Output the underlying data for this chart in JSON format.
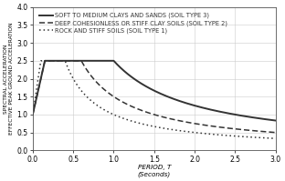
{
  "title": "",
  "xlabel": "PERIOD, T\n(Seconds)",
  "ylabel_line1": "SPECTRAL ACCELERATION",
  "ylabel_line2": "EFFECTIVE PEAK GROUND ACCELERATION",
  "xlim": [
    0.0,
    3.0
  ],
  "ylim": [
    0.0,
    4.0
  ],
  "xticks": [
    0.0,
    0.5,
    1.0,
    1.5,
    2.0,
    2.5,
    3.0
  ],
  "yticks": [
    0.0,
    0.5,
    1.0,
    1.5,
    2.0,
    2.5,
    3.0,
    3.5,
    4.0
  ],
  "legend": [
    {
      "label": "SOFT TO MEDIUM CLAYS AND SANDS (SOIL TYPE 3)",
      "linestyle": "solid",
      "lw": 1.4
    },
    {
      "label": "DEEP COHESIONLESS OR STIFF CLAY SOILS (SOIL TYPE 2)",
      "linestyle": "dashed",
      "lw": 1.1
    },
    {
      "label": "ROCK AND STIFF SOILS (SOIL TYPE 1)",
      "linestyle": "dotted",
      "lw": 1.1
    }
  ],
  "curves": {
    "soil3": {
      "T_rise_end": 0.15,
      "T_flat_end": 1.0,
      "Sa_peak": 2.5,
      "Sa_start": 1.0,
      "decay_C": 2.5,
      "decay_exp": 1.0
    },
    "soil2": {
      "T_rise_end": 0.15,
      "T_flat_end": 0.6,
      "Sa_peak": 2.5,
      "Sa_start": 1.0,
      "decay_C": 1.5,
      "decay_exp": 1.0
    },
    "soil1": {
      "T_rise_end": 0.1,
      "T_flat_end": 0.4,
      "Sa_peak": 2.5,
      "Sa_start": 1.0,
      "decay_C": 1.0,
      "decay_exp": 1.0
    }
  },
  "line_color": "#333333",
  "background_color": "#ffffff",
  "grid_color": "#cccccc",
  "fontsize_legend": 4.8,
  "fontsize_axis_label": 5.2,
  "fontsize_tick": 5.5
}
